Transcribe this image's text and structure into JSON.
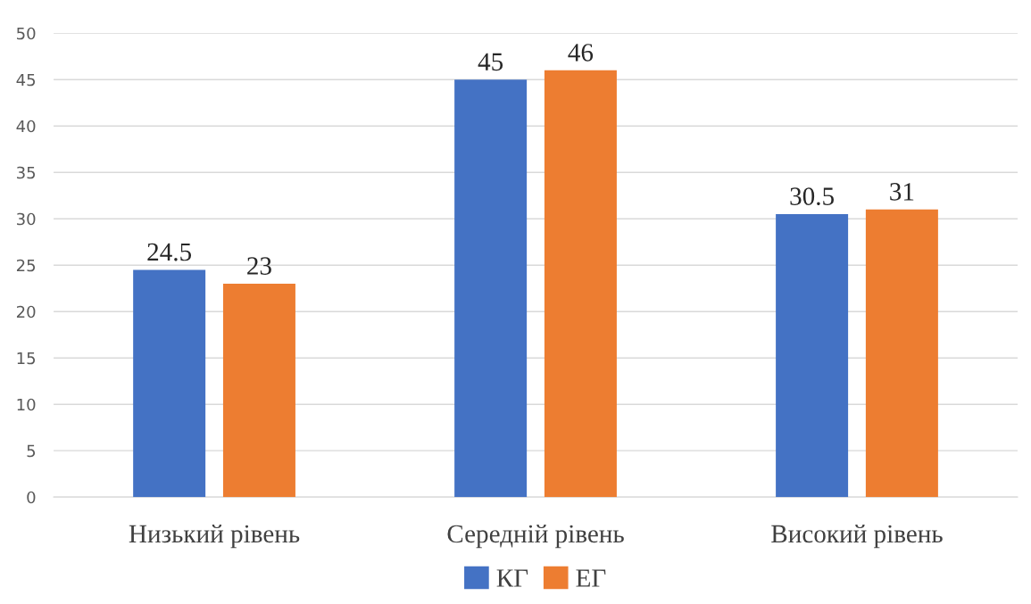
{
  "chart_data": {
    "type": "bar",
    "categories": [
      "Низький рівень",
      "Середній рівень",
      "Високий рівень"
    ],
    "series": [
      {
        "name": "КГ",
        "color": "#4472c4",
        "values": [
          24.5,
          45,
          30.5
        ]
      },
      {
        "name": "ЕГ",
        "color": "#ed7d31",
        "values": [
          23,
          46,
          31
        ]
      }
    ],
    "ylim": [
      0,
      50
    ],
    "yticks": [
      0,
      5,
      10,
      15,
      20,
      25,
      30,
      35,
      40,
      45,
      50
    ],
    "grid": "y",
    "legend": "bottom",
    "data_labels": true
  }
}
